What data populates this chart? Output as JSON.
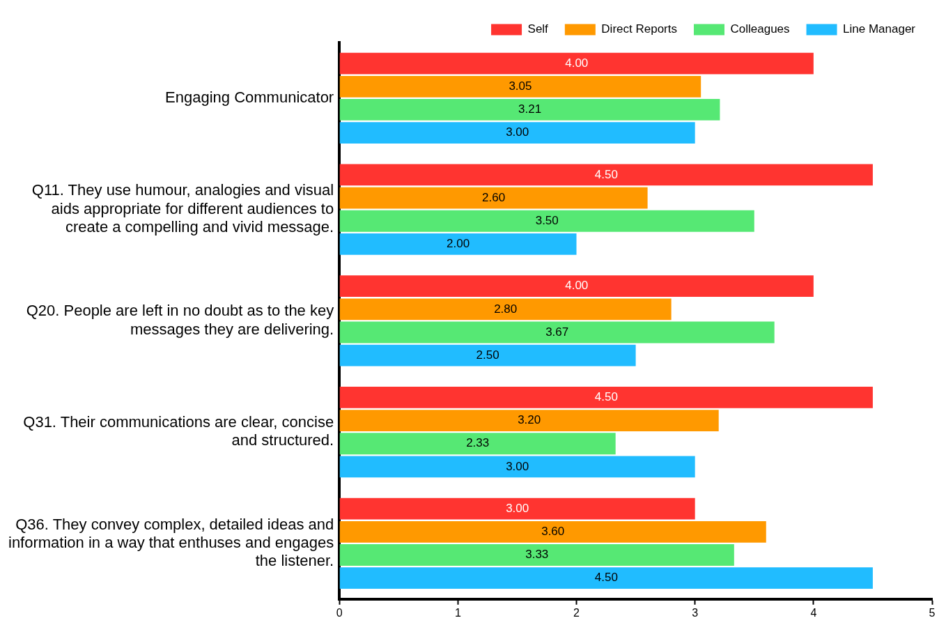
{
  "chart_data": {
    "type": "bar",
    "orientation": "horizontal",
    "categories": [
      "Engaging Communicator",
      "Q11. They use humour, analogies and visual aids appropriate for different audiences to create a compelling and vivid message.",
      "Q20. People are left in no doubt as to the key messages they are delivering.",
      "Q31. Their communications are clear, concise and structured.",
      "Q36. They convey complex, detailed ideas and information in a way that enthuses and engages the listener."
    ],
    "series": [
      {
        "name": "Self",
        "color": "#ff3430",
        "values": [
          4.0,
          4.5,
          4.0,
          4.5,
          3.0
        ],
        "value_labels": [
          "4.00",
          "4.50",
          "4.00",
          "4.50",
          "3.00"
        ]
      },
      {
        "name": "Direct Reports",
        "color": "#ff9900",
        "values": [
          3.05,
          2.6,
          2.8,
          3.2,
          3.6
        ],
        "value_labels": [
          "3.05",
          "2.60",
          "2.80",
          "3.20",
          "3.60"
        ]
      },
      {
        "name": "Colleagues",
        "color": "#56e874",
        "values": [
          3.21,
          3.5,
          3.67,
          2.33,
          3.33
        ],
        "value_labels": [
          "3.21",
          "3.50",
          "3.67",
          "2.33",
          "3.33"
        ]
      },
      {
        "name": "Line Manager",
        "color": "#21bcff",
        "values": [
          3.0,
          2.0,
          2.5,
          3.0,
          4.5
        ],
        "value_labels": [
          "3.00",
          "2.00",
          "2.50",
          "3.00",
          "4.50"
        ]
      }
    ],
    "xlim": [
      0,
      5
    ],
    "xticks": [
      0,
      1,
      2,
      3,
      4,
      5
    ],
    "grid": false,
    "legend": "top right"
  }
}
